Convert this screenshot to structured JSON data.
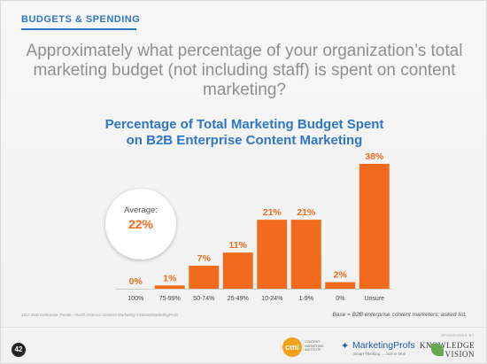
{
  "section_tag": "BUDGETS & SPENDING",
  "question": "Approximately what percentage of your organization’s total marketing budget (not including staff) is spent on content marketing?",
  "chart_data": {
    "type": "bar",
    "title_line1": "Percentage of Total Marketing Budget Spent",
    "title_line2": "on B2B Enterprise Content Marketing",
    "categories": [
      "100%",
      "75-99%",
      "50-74%",
      "25-49%",
      "10-24%",
      "1-9%",
      "0%",
      "Unsure"
    ],
    "values": [
      0,
      1,
      7,
      11,
      21,
      21,
      2,
      38
    ],
    "value_labels": [
      "0%",
      "1%",
      "7%",
      "11%",
      "21%",
      "21%",
      "2%",
      "38%"
    ],
    "ylim": [
      0,
      38
    ],
    "grid": false,
    "bar_color": "#f26b1d",
    "label_color": "#f26b1d",
    "average_label": "Average:",
    "average_value": "22%"
  },
  "source_note": "2017 B2B Enterprise Trends—North America: Content Marketing Institute/MarketingProfs",
  "base_note": "Base = B2B enterprise content marketers; asked list.",
  "page_number": "42",
  "logos": {
    "cmi_mark": "cmi",
    "cmi_text": "CONTENT MARKETING INSTITUTE",
    "mp_name": "MarketingProfs",
    "mp_tag": "Smart Thinking ... Just in time",
    "kv_sponsor": "SPONSORED BY",
    "kv_name1": "KNOWLEDGE",
    "kv_name2": "VISION"
  }
}
